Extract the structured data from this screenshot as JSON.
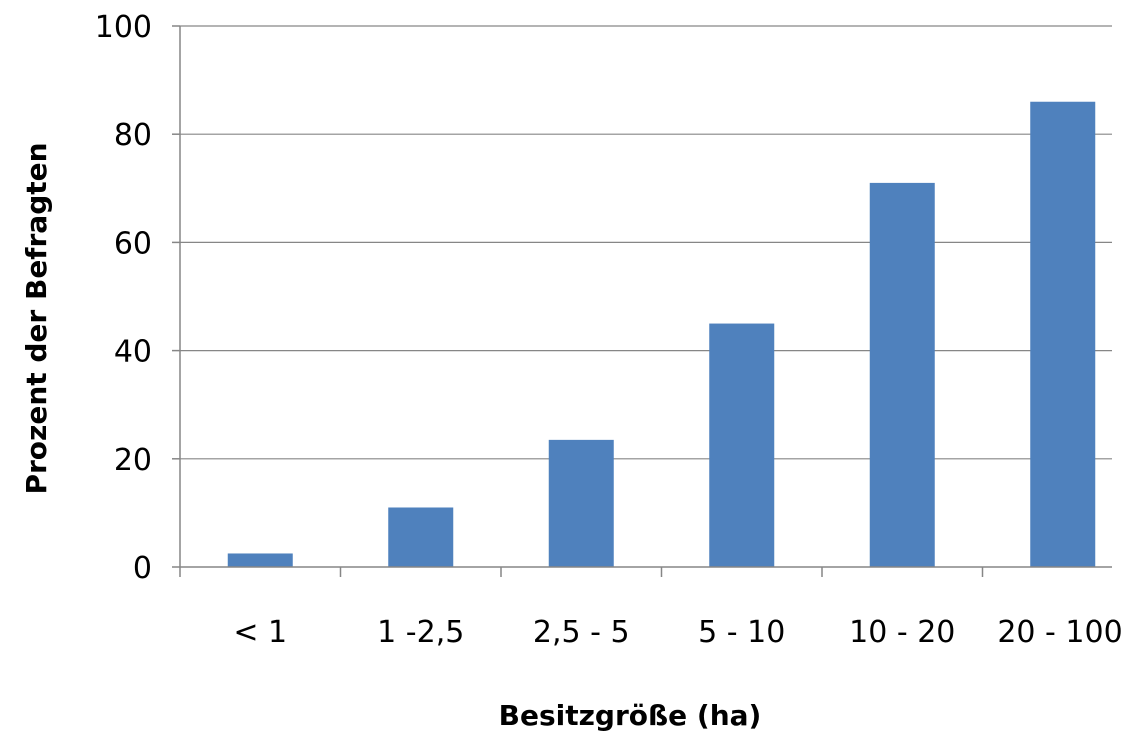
{
  "chart_data": {
    "type": "bar",
    "categories": [
      "< 1",
      "1 -2,5",
      "2,5 - 5",
      "5 - 10",
      "10 - 20",
      "20 - 100"
    ],
    "values": [
      2.5,
      11,
      23.5,
      45,
      71,
      86
    ],
    "title": "",
    "xlabel": "Besitzgröße (ha)",
    "ylabel": "Prozent der Befragten",
    "ylim": [
      0,
      100
    ],
    "yticks": [
      0,
      20,
      40,
      60,
      80,
      100
    ],
    "ytick_labels": [
      "0",
      "20",
      "40",
      "60",
      "80",
      "100"
    ],
    "grid": true,
    "legend": "none",
    "colors": {
      "bar": "#4F81BD",
      "grid": "#868686",
      "text": "#000000"
    }
  }
}
